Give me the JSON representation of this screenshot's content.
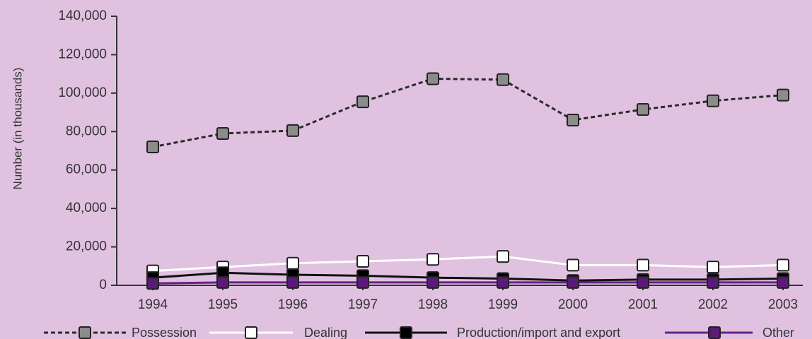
{
  "chart_data": {
    "type": "line",
    "title": "",
    "xlabel": "",
    "ylabel": "Number (in thousands)",
    "x": [
      "1994",
      "1995",
      "1996",
      "1997",
      "1998",
      "1999",
      "2000",
      "2001",
      "2002",
      "2003"
    ],
    "yticks": [
      "0",
      "20,000",
      "40,000",
      "60,000",
      "80,000",
      "100,000",
      "120,000",
      "140,000"
    ],
    "ylim": [
      0,
      140000
    ],
    "grid": false,
    "legend_position": "bottom",
    "series": [
      {
        "name": "Possession",
        "values": [
          72000,
          79000,
          80500,
          95500,
          107500,
          107000,
          86000,
          91500,
          96000,
          99000
        ],
        "color": "#2b2b2b",
        "marker_fill": "#8c8c8c",
        "dash": "dashed"
      },
      {
        "name": "Dealing",
        "values": [
          7500,
          9500,
          11500,
          12500,
          13500,
          15000,
          10500,
          10500,
          9500,
          10500
        ],
        "color": "#ffffff",
        "marker_fill": "#ffffff",
        "dash": "solid"
      },
      {
        "name": "Production/import and export",
        "values": [
          4000,
          6500,
          5500,
          5000,
          4000,
          3500,
          2500,
          3000,
          3000,
          3500
        ],
        "color": "#111111",
        "marker_fill": "#000000",
        "dash": "solid"
      },
      {
        "name": "Other",
        "values": [
          1000,
          1500,
          1500,
          1500,
          1500,
          1500,
          1500,
          1500,
          1500,
          1500
        ],
        "color": "#6a1f8a",
        "marker_fill": "#5a1a78",
        "dash": "solid"
      }
    ]
  }
}
